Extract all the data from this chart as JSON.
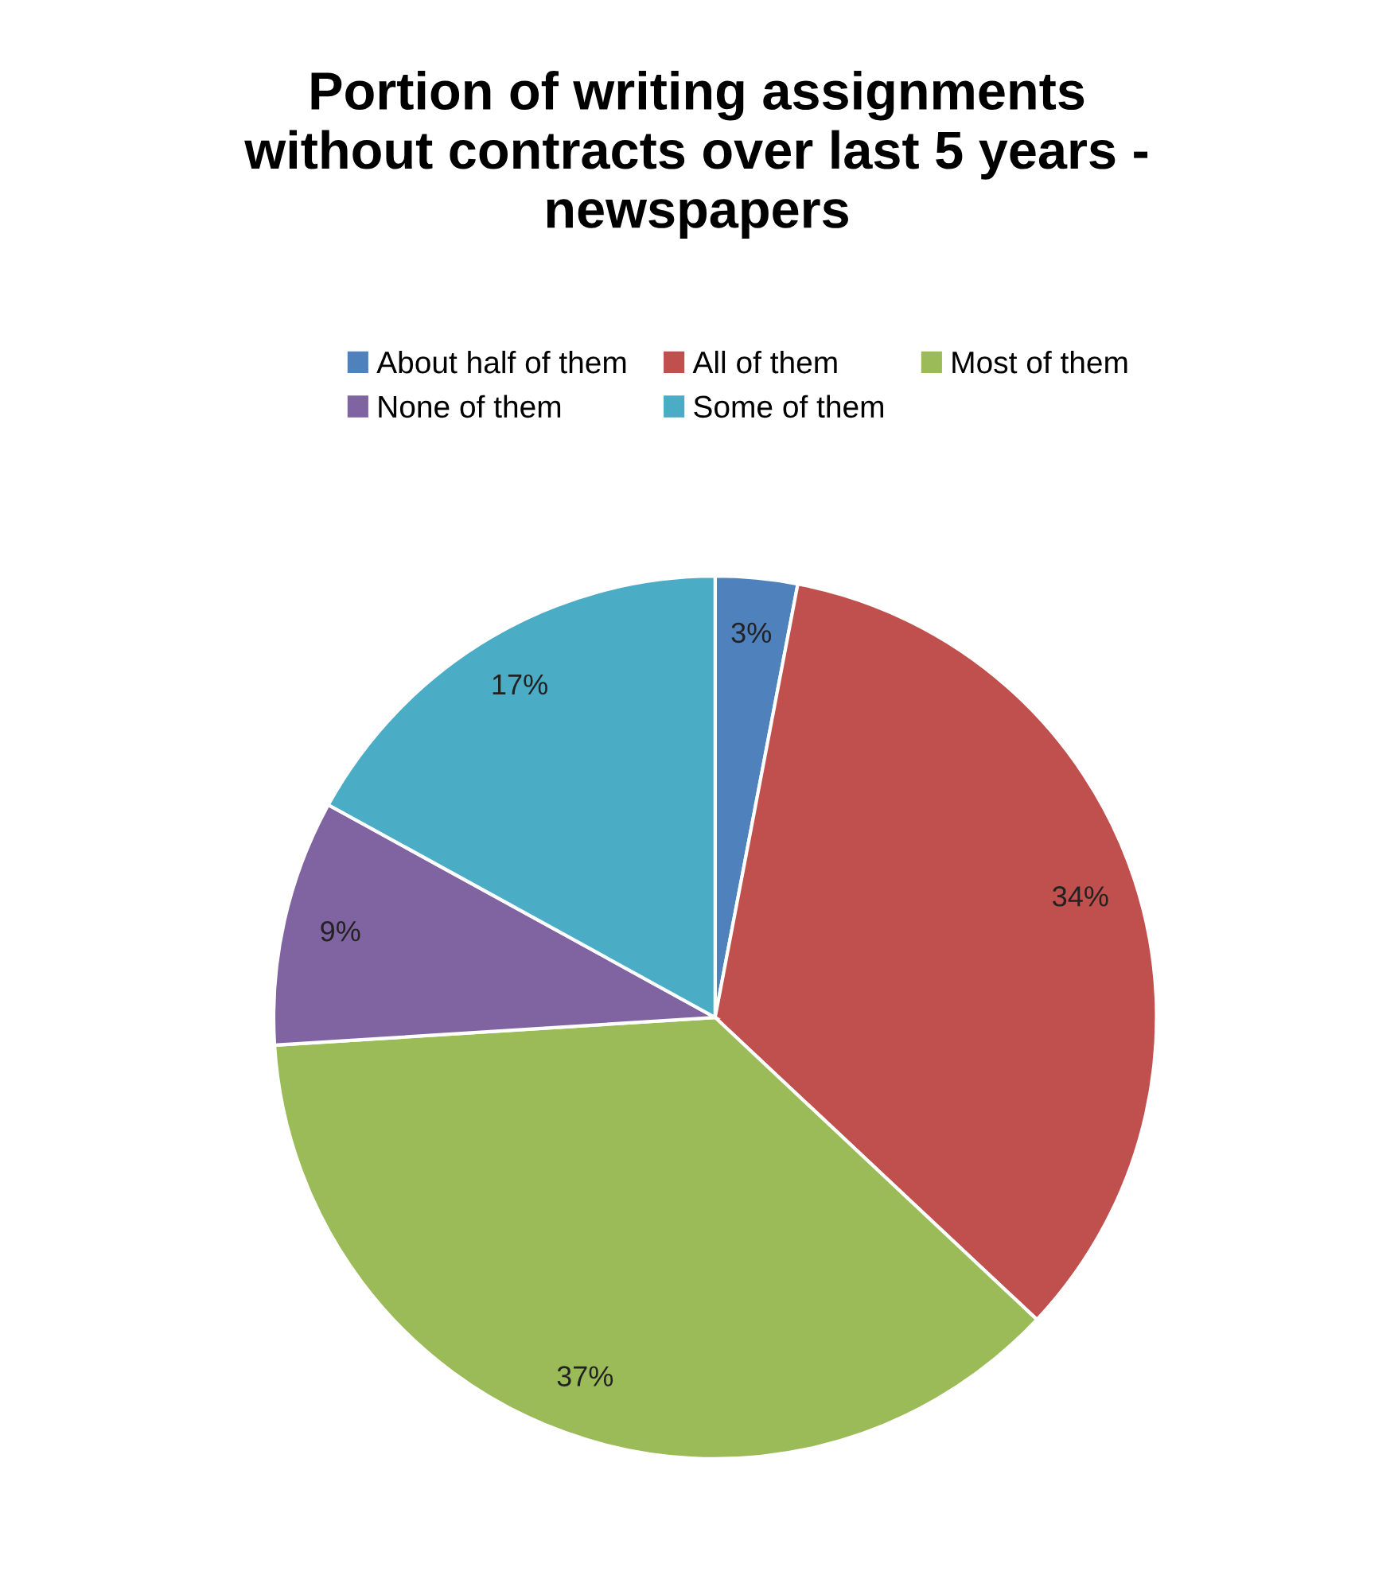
{
  "chart_data": {
    "type": "pie",
    "title": "Portion of writing assignments\nwithout contracts over last 5 years -\nnewspapers",
    "categories": [
      "About half of them",
      "All of them",
      "Most of them",
      "None of them",
      "Some of them"
    ],
    "values": [
      3,
      34,
      37,
      9,
      17
    ],
    "colors": [
      "#4f81bd",
      "#c0504d",
      "#9bbb59",
      "#8064a2",
      "#4bacc6"
    ],
    "value_labels": [
      "3%",
      "34%",
      "37%",
      "9%",
      "17%"
    ],
    "legend": "top"
  }
}
